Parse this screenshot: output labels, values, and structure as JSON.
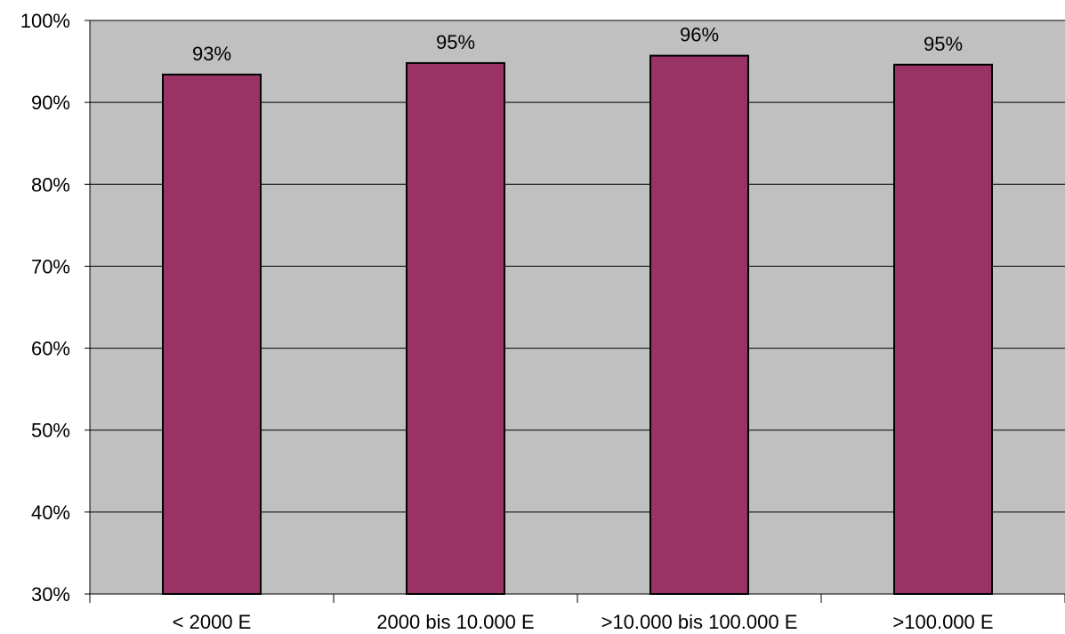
{
  "chart_data": {
    "type": "bar",
    "categories": [
      "< 2000 E",
      "2000 bis 10.000 E",
      ">10.000 bis 100.000 E",
      ">100.000 E"
    ],
    "values": [
      93.4,
      94.8,
      95.7,
      94.6
    ],
    "data_labels": [
      "93%",
      "95%",
      "96%",
      "95%"
    ],
    "ylim": [
      30,
      100
    ],
    "yticks": [
      30,
      40,
      50,
      60,
      70,
      80,
      90,
      100
    ],
    "ytick_labels": [
      "30%",
      "40%",
      "50%",
      "60%",
      "70%",
      "80%",
      "90%",
      "100%"
    ],
    "grid": true,
    "legend": "none",
    "title": "",
    "xlabel": "",
    "ylabel": "",
    "colors": {
      "bar": "#993366",
      "bar_edge": "#000000",
      "plot_background": "#c0c0c0",
      "gridline": "#000000"
    }
  }
}
